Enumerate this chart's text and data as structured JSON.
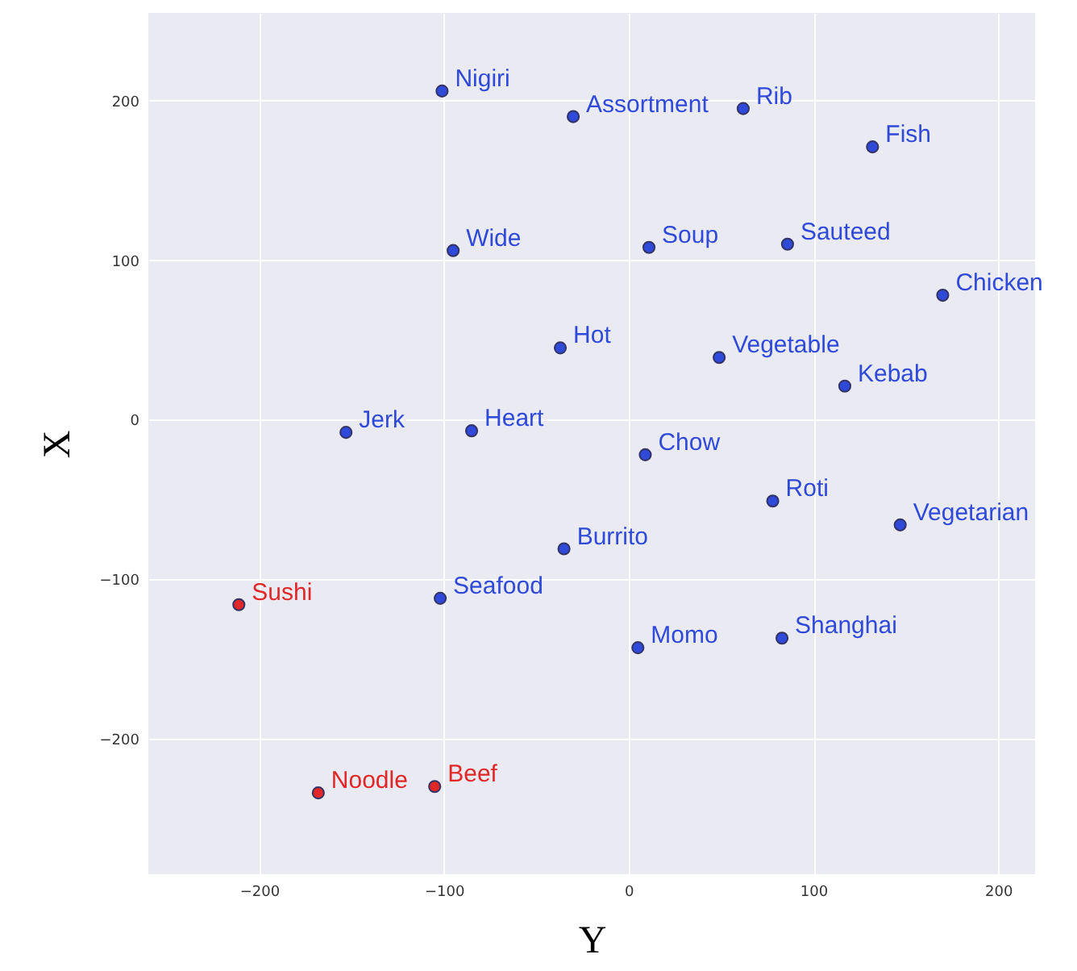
{
  "chart_data": {
    "type": "scatter",
    "xlabel": "Y",
    "ylabel": "X",
    "xlim": [
      -260,
      220
    ],
    "ylim": [
      -285,
      255
    ],
    "xticks": [
      -200,
      -100,
      0,
      100,
      200
    ],
    "yticks": [
      -200,
      -100,
      0,
      100,
      200
    ],
    "grid": true,
    "marker": "circle",
    "series": [
      {
        "color": "#2f4ad8",
        "x": [
          -101,
          -30,
          62,
          132,
          -95,
          11,
          86,
          170,
          -37,
          49,
          117,
          -153,
          -85,
          9,
          78,
          147,
          -35,
          -102,
          5,
          83
        ],
        "values": [
          206,
          190,
          195,
          171,
          106,
          108,
          110,
          78,
          45,
          39,
          21,
          -8,
          -7,
          -22,
          -51,
          -66,
          -81,
          -112,
          -143,
          -137
        ]
      },
      {
        "color": "#e02828",
        "x": [
          -211,
          -168,
          -105
        ],
        "values": [
          -116,
          -234,
          -230
        ]
      }
    ],
    "annotations": [
      {
        "text": "Nigiri",
        "x": -101,
        "y": 206
      },
      {
        "text": "Assortment",
        "x": -30,
        "y": 190
      },
      {
        "text": "Rib",
        "x": 62,
        "y": 195
      },
      {
        "text": "Fish",
        "x": 132,
        "y": 171
      },
      {
        "text": "Wide",
        "x": -95,
        "y": 106
      },
      {
        "text": "Soup",
        "x": 11,
        "y": 108
      },
      {
        "text": "Sauteed",
        "x": 86,
        "y": 110
      },
      {
        "text": "Chicken",
        "x": 170,
        "y": 78
      },
      {
        "text": "Hot",
        "x": -37,
        "y": 45
      },
      {
        "text": "Vegetable",
        "x": 49,
        "y": 39
      },
      {
        "text": "Kebab",
        "x": 117,
        "y": 21
      },
      {
        "text": "Jerk",
        "x": -153,
        "y": -8
      },
      {
        "text": "Heart",
        "x": -85,
        "y": -7
      },
      {
        "text": "Chow",
        "x": 9,
        "y": -22
      },
      {
        "text": "Roti",
        "x": 78,
        "y": -51
      },
      {
        "text": "Vegetarian",
        "x": 147,
        "y": -66
      },
      {
        "text": "Burrito",
        "x": -35,
        "y": -81
      },
      {
        "text": "Seafood",
        "x": -102,
        "y": -112
      },
      {
        "text": "Momo",
        "x": 5,
        "y": -143
      },
      {
        "text": "Shanghai",
        "x": 83,
        "y": -137
      },
      {
        "text": "Sushi",
        "x": -211,
        "y": -116
      },
      {
        "text": "Noodle",
        "x": -168,
        "y": -234
      },
      {
        "text": "Beef",
        "x": -105,
        "y": -230
      }
    ]
  }
}
